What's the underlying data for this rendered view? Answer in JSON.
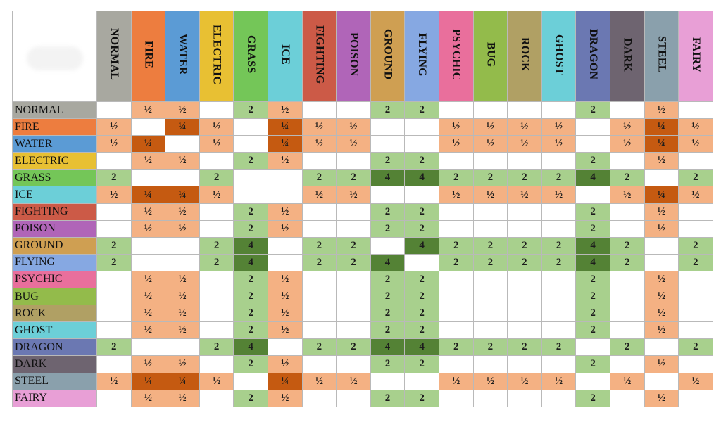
{
  "types": [
    {
      "name": "NORMAL",
      "color": "#a8a8a0"
    },
    {
      "name": "FIRE",
      "color": "#ed7d3f"
    },
    {
      "name": "WATER",
      "color": "#5b9bd5"
    },
    {
      "name": "ELECTRIC",
      "color": "#e8c033"
    },
    {
      "name": "GRASS",
      "color": "#74c658"
    },
    {
      "name": "ICE",
      "color": "#6ccfd8"
    },
    {
      "name": "FIGHTING",
      "color": "#cc5a47"
    },
    {
      "name": "POISON",
      "color": "#b065b8"
    },
    {
      "name": "GROUND",
      "color": "#cf9f52"
    },
    {
      "name": "FLYING",
      "color": "#86a8e2"
    },
    {
      "name": "PSYCHIC",
      "color": "#e96f9c"
    },
    {
      "name": "BUG",
      "color": "#93bb4b"
    },
    {
      "name": "ROCK",
      "color": "#b0a064"
    },
    {
      "name": "GHOST",
      "color": "#6ccfd8"
    },
    {
      "name": "DRAGON",
      "color": "#6b78b2"
    },
    {
      "name": "DARK",
      "color": "#6e6470"
    },
    {
      "name": "STEEL",
      "color": "#8aa0ac"
    },
    {
      "name": "FAIRY",
      "color": "#e89fd6"
    }
  ],
  "cell_colors": {
    "2": "#a8d08d",
    "4": "#548235",
    "½": "#f4b183",
    "¼": "#c55a11"
  },
  "matrix": [
    [
      "",
      "½",
      "½",
      "",
      "2",
      "½",
      "",
      "",
      "2",
      "2",
      "",
      "",
      "",
      "",
      "2",
      "",
      "½",
      ""
    ],
    [
      "½",
      "",
      "¼",
      "½",
      "",
      "¼",
      "½",
      "½",
      "",
      "",
      "½",
      "½",
      "½",
      "½",
      "",
      "½",
      "¼",
      "½"
    ],
    [
      "½",
      "¼",
      "",
      "½",
      "",
      "¼",
      "½",
      "½",
      "",
      "",
      "½",
      "½",
      "½",
      "½",
      "",
      "½",
      "¼",
      "½"
    ],
    [
      "",
      "½",
      "½",
      "",
      "2",
      "½",
      "",
      "",
      "2",
      "2",
      "",
      "",
      "",
      "",
      "2",
      "",
      "½",
      ""
    ],
    [
      "2",
      "",
      "",
      "2",
      "",
      "",
      "2",
      "2",
      "4",
      "4",
      "2",
      "2",
      "2",
      "2",
      "4",
      "2",
      "",
      "2"
    ],
    [
      "½",
      "¼",
      "¼",
      "½",
      "",
      "",
      "½",
      "½",
      "",
      "",
      "½",
      "½",
      "½",
      "½",
      "",
      "½",
      "¼",
      "½"
    ],
    [
      "",
      "½",
      "½",
      "",
      "2",
      "½",
      "",
      "",
      "2",
      "2",
      "",
      "",
      "",
      "",
      "2",
      "",
      "½",
      ""
    ],
    [
      "",
      "½",
      "½",
      "",
      "2",
      "½",
      "",
      "",
      "2",
      "2",
      "",
      "",
      "",
      "",
      "2",
      "",
      "½",
      ""
    ],
    [
      "2",
      "",
      "",
      "2",
      "4",
      "",
      "2",
      "2",
      "",
      "4",
      "2",
      "2",
      "2",
      "2",
      "4",
      "2",
      "",
      "2"
    ],
    [
      "2",
      "",
      "",
      "2",
      "4",
      "",
      "2",
      "2",
      "4",
      "",
      "2",
      "2",
      "2",
      "2",
      "4",
      "2",
      "",
      "2"
    ],
    [
      "",
      "½",
      "½",
      "",
      "2",
      "½",
      "",
      "",
      "2",
      "2",
      "",
      "",
      "",
      "",
      "2",
      "",
      "½",
      ""
    ],
    [
      "",
      "½",
      "½",
      "",
      "2",
      "½",
      "",
      "",
      "2",
      "2",
      "",
      "",
      "",
      "",
      "2",
      "",
      "½",
      ""
    ],
    [
      "",
      "½",
      "½",
      "",
      "2",
      "½",
      "",
      "",
      "2",
      "2",
      "",
      "",
      "",
      "",
      "2",
      "",
      "½",
      ""
    ],
    [
      "",
      "½",
      "½",
      "",
      "2",
      "½",
      "",
      "",
      "2",
      "2",
      "",
      "",
      "",
      "",
      "2",
      "",
      "½",
      ""
    ],
    [
      "2",
      "",
      "",
      "2",
      "4",
      "",
      "2",
      "2",
      "4",
      "4",
      "2",
      "2",
      "2",
      "2",
      "",
      "2",
      "",
      "2"
    ],
    [
      "",
      "½",
      "½",
      "",
      "2",
      "½",
      "",
      "",
      "2",
      "2",
      "",
      "",
      "",
      "",
      "2",
      "",
      "½",
      ""
    ],
    [
      "½",
      "¼",
      "¼",
      "½",
      "",
      "¼",
      "½",
      "½",
      "",
      "",
      "½",
      "½",
      "½",
      "½",
      "",
      "½",
      "",
      "½"
    ],
    [
      "",
      "½",
      "½",
      "",
      "2",
      "½",
      "",
      "",
      "2",
      "2",
      "",
      "",
      "",
      "",
      "2",
      "",
      "½",
      ""
    ]
  ]
}
